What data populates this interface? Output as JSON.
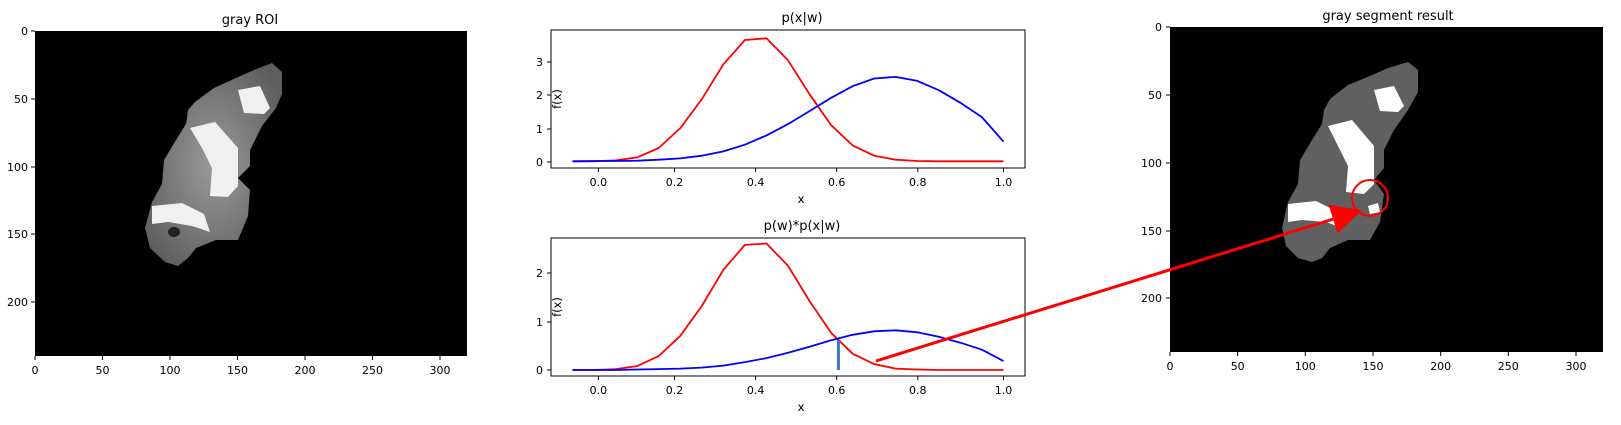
{
  "chart_data": [
    {
      "type": "image",
      "title": "gray ROI",
      "xticks": [
        "0",
        "50",
        "100",
        "150",
        "200",
        "250",
        "300"
      ],
      "yticks": [
        "0",
        "50",
        "100",
        "150",
        "200"
      ],
      "xlim": [
        0,
        320
      ],
      "ylim": [
        240,
        0
      ]
    },
    {
      "type": "line",
      "title": "p(x|w)",
      "xlabel": "x",
      "ylabel": "f(x)",
      "xlim": [
        -0.05,
        1.05
      ],
      "ylim": [
        -0.2,
        3.95
      ],
      "xticks": [
        "0.0",
        "0.2",
        "0.4",
        "0.6",
        "0.8",
        "1.0"
      ],
      "yticks": [
        "0",
        "1",
        "2",
        "3"
      ],
      "x": [
        0,
        0.05,
        0.1,
        0.15,
        0.2,
        0.25,
        0.3,
        0.35,
        0.4,
        0.45,
        0.5,
        0.55,
        0.6,
        0.65,
        0.7,
        0.75,
        0.8,
        0.85,
        0.9,
        0.95,
        1.0
      ],
      "series": [
        {
          "color": "#ff0000",
          "values": [
            0.0,
            0.0,
            0.03,
            0.12,
            0.4,
            1.0,
            1.87,
            2.92,
            3.65,
            3.7,
            3.04,
            2.02,
            1.09,
            0.48,
            0.17,
            0.05,
            0.01,
            0.0,
            0.0,
            0.0,
            0.0
          ]
        },
        {
          "color": "#0000ff",
          "values": [
            0.0,
            0.01,
            0.01,
            0.02,
            0.05,
            0.09,
            0.17,
            0.3,
            0.5,
            0.78,
            1.12,
            1.51,
            1.91,
            2.26,
            2.49,
            2.54,
            2.42,
            2.14,
            1.76,
            1.33,
            0.59
          ]
        }
      ]
    },
    {
      "type": "line",
      "title": "p(w)*p(x|w)",
      "xlabel": "x",
      "ylabel": "f(x)",
      "xlim": [
        -0.05,
        1.05
      ],
      "ylim": [
        -0.12,
        2.66
      ],
      "xticks": [
        "0.0",
        "0.2",
        "0.4",
        "0.6",
        "0.8",
        "1.0"
      ],
      "yticks": [
        "0",
        "1",
        "2"
      ],
      "x": [
        0,
        0.05,
        0.1,
        0.15,
        0.2,
        0.25,
        0.3,
        0.35,
        0.4,
        0.45,
        0.5,
        0.55,
        0.6,
        0.65,
        0.7,
        0.75,
        0.8,
        0.85,
        0.9,
        0.95,
        1.0
      ],
      "series": [
        {
          "color": "#ff0000",
          "values": [
            0.0,
            0.0,
            0.02,
            0.08,
            0.28,
            0.69,
            1.29,
            2.02,
            2.52,
            2.55,
            2.1,
            1.39,
            0.75,
            0.33,
            0.12,
            0.03,
            0.01,
            0.0,
            0.0,
            0.0,
            0.0
          ]
        },
        {
          "color": "#0000ff",
          "values": [
            0.0,
            0.0,
            0.0,
            0.01,
            0.02,
            0.03,
            0.05,
            0.09,
            0.16,
            0.24,
            0.35,
            0.47,
            0.6,
            0.71,
            0.78,
            0.8,
            0.76,
            0.67,
            0.55,
            0.41,
            0.18
          ]
        }
      ],
      "threshold_x": 0.617
    },
    {
      "type": "image",
      "title": "gray segment result",
      "xticks": [
        "0",
        "50",
        "100",
        "150",
        "200",
        "250",
        "300"
      ],
      "yticks": [
        "0",
        "50",
        "100",
        "150",
        "200"
      ],
      "xlim": [
        0,
        320
      ],
      "ylim": [
        240,
        0
      ],
      "annotation": {
        "shape": "circle",
        "color": "#ff0000",
        "x": 148,
        "y": 127
      }
    }
  ],
  "colors": {
    "fish_body": "#8c8c8c",
    "fish_stripe": "#f0f0f0",
    "segment_dark": "#606060",
    "segment_light": "#ffffff",
    "arrow": "#ff0000",
    "threshold": "#3b78c0"
  }
}
